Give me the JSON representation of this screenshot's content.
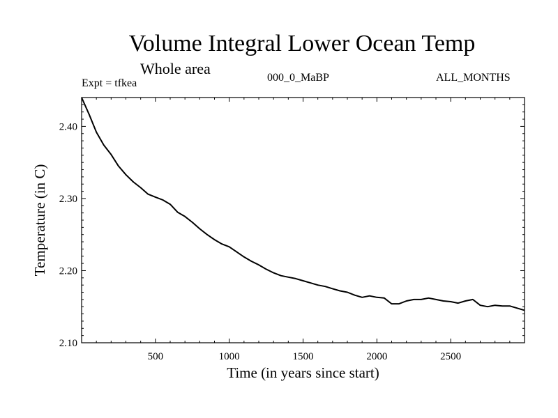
{
  "header": {
    "title": "Volume Integral Lower Ocean Temp",
    "subtitle": "Whole area",
    "experiment": "Expt = tfkea",
    "experiment_name": "000_0_MaBP",
    "months": "ALL_MONTHS"
  },
  "chart_data": {
    "type": "line",
    "title": "Volume Integral Lower Ocean Temp",
    "subtitle": "Whole area",
    "xlabel": "Time (in years since start)",
    "ylabel": "Temperature (in C)",
    "xlim": [
      0,
      3000
    ],
    "ylim": [
      2.1,
      2.44
    ],
    "x_ticks": [
      500,
      1000,
      1500,
      2000,
      2500
    ],
    "x_tick_labels": [
      "500",
      "1000",
      "1500",
      "2000",
      "2500"
    ],
    "y_ticks": [
      2.1,
      2.2,
      2.3,
      2.4
    ],
    "y_tick_labels": [
      "2.10",
      "2.20",
      "2.30",
      "2.40"
    ],
    "grid": false,
    "series": [
      {
        "color": "#000000",
        "x": [
          0,
          50,
          100,
          150,
          200,
          250,
          300,
          350,
          400,
          450,
          500,
          550,
          600,
          650,
          700,
          750,
          800,
          850,
          900,
          950,
          1000,
          1050,
          1100,
          1150,
          1200,
          1250,
          1300,
          1350,
          1400,
          1450,
          1500,
          1550,
          1600,
          1650,
          1700,
          1750,
          1800,
          1850,
          1900,
          1950,
          2000,
          2050,
          2100,
          2150,
          2200,
          2250,
          2300,
          2350,
          2400,
          2450,
          2500,
          2550,
          2600,
          2650,
          2700,
          2750,
          2800,
          2850,
          2900,
          2950,
          3000
        ],
        "values": [
          2.44,
          2.417,
          2.392,
          2.374,
          2.361,
          2.345,
          2.333,
          2.323,
          2.315,
          2.306,
          2.302,
          2.298,
          2.292,
          2.281,
          2.275,
          2.267,
          2.258,
          2.25,
          2.243,
          2.237,
          2.233,
          2.226,
          2.219,
          2.213,
          2.208,
          2.202,
          2.197,
          2.193,
          2.191,
          2.189,
          2.186,
          2.183,
          2.18,
          2.178,
          2.175,
          2.172,
          2.17,
          2.166,
          2.163,
          2.165,
          2.163,
          2.162,
          2.154,
          2.154,
          2.158,
          2.16,
          2.16,
          2.162,
          2.16,
          2.158,
          2.157,
          2.155,
          2.158,
          2.16,
          2.152,
          2.15,
          2.152,
          2.151,
          2.151,
          2.148,
          2.145
        ]
      }
    ]
  }
}
